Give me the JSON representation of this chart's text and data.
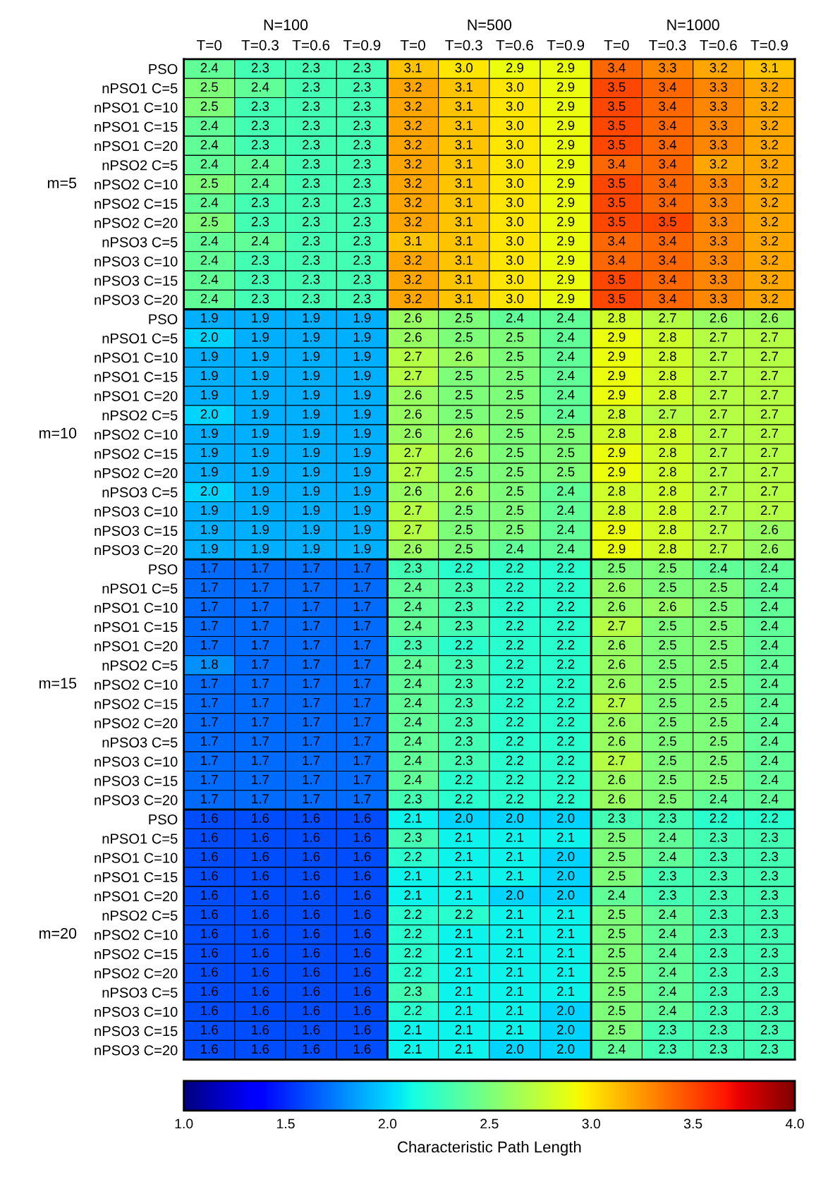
{
  "chart_data": {
    "type": "heatmap",
    "clabel": "Characteristic Path Length",
    "categories": [
      "T=0",
      "T=0.3",
      "T=0.6",
      "T=0.9",
      "T=0",
      "T=0.3",
      "T=0.6",
      "T=0.9",
      "T=0",
      "T=0.3",
      "T=0.6",
      "T=0.9"
    ],
    "y_categories": [
      "PSO",
      "nPSO1 C=5",
      "nPSO1 C=10",
      "nPSO1 C=15",
      "nPSO1 C=20",
      "nPSO2 C=5",
      "nPSO2 C=10",
      "nPSO2 C=15",
      "nPSO2 C=20",
      "nPSO3 C=5",
      "nPSO3 C=10",
      "nPSO3 C=15",
      "nPSO3 C=20",
      "PSO",
      "nPSO1 C=5",
      "nPSO1 C=10",
      "nPSO1 C=15",
      "nPSO1 C=20",
      "nPSO2 C=5",
      "nPSO2 C=10",
      "nPSO2 C=15",
      "nPSO2 C=20",
      "nPSO3 C=5",
      "nPSO3 C=10",
      "nPSO3 C=15",
      "nPSO3 C=20",
      "PSO",
      "nPSO1 C=5",
      "nPSO1 C=10",
      "nPSO1 C=15",
      "nPSO1 C=20",
      "nPSO2 C=5",
      "nPSO2 C=10",
      "nPSO2 C=15",
      "nPSO2 C=20",
      "nPSO3 C=5",
      "nPSO3 C=10",
      "nPSO3 C=15",
      "nPSO3 C=20",
      "PSO",
      "nPSO1 C=5",
      "nPSO1 C=10",
      "nPSO1 C=15",
      "nPSO1 C=20",
      "nPSO2 C=5",
      "nPSO2 C=10",
      "nPSO2 C=15",
      "nPSO2 C=20",
      "nPSO3 C=5",
      "nPSO3 C=10",
      "nPSO3 C=15",
      "nPSO3 C=20"
    ],
    "cells": [
      [
        2.4,
        2.3,
        2.3,
        2.3,
        3.1,
        3.0,
        2.9,
        2.9,
        3.4,
        3.3,
        3.2,
        3.1
      ],
      [
        2.5,
        2.4,
        2.3,
        2.3,
        3.2,
        3.1,
        3.0,
        2.9,
        3.5,
        3.4,
        3.3,
        3.2
      ],
      [
        2.5,
        2.3,
        2.3,
        2.3,
        3.2,
        3.1,
        3.0,
        2.9,
        3.5,
        3.4,
        3.3,
        3.2
      ],
      [
        2.4,
        2.3,
        2.3,
        2.3,
        3.2,
        3.1,
        3.0,
        2.9,
        3.5,
        3.4,
        3.3,
        3.2
      ],
      [
        2.4,
        2.3,
        2.3,
        2.3,
        3.2,
        3.1,
        3.0,
        2.9,
        3.5,
        3.4,
        3.3,
        3.2
      ],
      [
        2.4,
        2.4,
        2.3,
        2.3,
        3.2,
        3.1,
        3.0,
        2.9,
        3.4,
        3.4,
        3.2,
        3.2
      ],
      [
        2.5,
        2.4,
        2.3,
        2.3,
        3.2,
        3.1,
        3.0,
        2.9,
        3.5,
        3.4,
        3.3,
        3.2
      ],
      [
        2.4,
        2.3,
        2.3,
        2.3,
        3.2,
        3.1,
        3.0,
        2.9,
        3.5,
        3.4,
        3.3,
        3.2
      ],
      [
        2.5,
        2.3,
        2.3,
        2.3,
        3.2,
        3.1,
        3.0,
        2.9,
        3.5,
        3.5,
        3.3,
        3.2
      ],
      [
        2.4,
        2.4,
        2.3,
        2.3,
        3.1,
        3.1,
        3.0,
        2.9,
        3.4,
        3.4,
        3.3,
        3.2
      ],
      [
        2.4,
        2.3,
        2.3,
        2.3,
        3.2,
        3.1,
        3.0,
        2.9,
        3.4,
        3.4,
        3.3,
        3.2
      ],
      [
        2.4,
        2.3,
        2.3,
        2.3,
        3.2,
        3.1,
        3.0,
        2.9,
        3.5,
        3.4,
        3.3,
        3.2
      ],
      [
        2.4,
        2.3,
        2.3,
        2.3,
        3.2,
        3.1,
        3.0,
        2.9,
        3.5,
        3.4,
        3.3,
        3.2
      ],
      [
        1.9,
        1.9,
        1.9,
        1.9,
        2.6,
        2.5,
        2.4,
        2.4,
        2.8,
        2.7,
        2.6,
        2.6
      ],
      [
        2.0,
        1.9,
        1.9,
        1.9,
        2.6,
        2.5,
        2.5,
        2.4,
        2.9,
        2.8,
        2.7,
        2.7
      ],
      [
        1.9,
        1.9,
        1.9,
        1.9,
        2.7,
        2.6,
        2.5,
        2.4,
        2.9,
        2.8,
        2.7,
        2.7
      ],
      [
        1.9,
        1.9,
        1.9,
        1.9,
        2.7,
        2.5,
        2.5,
        2.4,
        2.9,
        2.8,
        2.7,
        2.7
      ],
      [
        1.9,
        1.9,
        1.9,
        1.9,
        2.6,
        2.5,
        2.5,
        2.4,
        2.9,
        2.8,
        2.7,
        2.7
      ],
      [
        2.0,
        1.9,
        1.9,
        1.9,
        2.6,
        2.5,
        2.5,
        2.4,
        2.8,
        2.7,
        2.7,
        2.7
      ],
      [
        1.9,
        1.9,
        1.9,
        1.9,
        2.6,
        2.6,
        2.5,
        2.5,
        2.8,
        2.8,
        2.7,
        2.7
      ],
      [
        1.9,
        1.9,
        1.9,
        1.9,
        2.7,
        2.6,
        2.5,
        2.5,
        2.9,
        2.8,
        2.7,
        2.7
      ],
      [
        1.9,
        1.9,
        1.9,
        1.9,
        2.7,
        2.5,
        2.5,
        2.5,
        2.9,
        2.8,
        2.7,
        2.7
      ],
      [
        2.0,
        1.9,
        1.9,
        1.9,
        2.6,
        2.6,
        2.5,
        2.4,
        2.8,
        2.8,
        2.7,
        2.7
      ],
      [
        1.9,
        1.9,
        1.9,
        1.9,
        2.7,
        2.5,
        2.5,
        2.4,
        2.8,
        2.8,
        2.7,
        2.7
      ],
      [
        1.9,
        1.9,
        1.9,
        1.9,
        2.7,
        2.5,
        2.5,
        2.4,
        2.9,
        2.8,
        2.7,
        2.6
      ],
      [
        1.9,
        1.9,
        1.9,
        1.9,
        2.6,
        2.5,
        2.4,
        2.4,
        2.9,
        2.8,
        2.7,
        2.6
      ],
      [
        1.7,
        1.7,
        1.7,
        1.7,
        2.3,
        2.2,
        2.2,
        2.2,
        2.5,
        2.5,
        2.4,
        2.4
      ],
      [
        1.7,
        1.7,
        1.7,
        1.7,
        2.4,
        2.3,
        2.2,
        2.2,
        2.6,
        2.5,
        2.5,
        2.4
      ],
      [
        1.7,
        1.7,
        1.7,
        1.7,
        2.4,
        2.3,
        2.2,
        2.2,
        2.6,
        2.6,
        2.5,
        2.4
      ],
      [
        1.7,
        1.7,
        1.7,
        1.7,
        2.4,
        2.3,
        2.2,
        2.2,
        2.7,
        2.5,
        2.5,
        2.4
      ],
      [
        1.7,
        1.7,
        1.7,
        1.7,
        2.3,
        2.2,
        2.2,
        2.2,
        2.6,
        2.5,
        2.5,
        2.4
      ],
      [
        1.8,
        1.7,
        1.7,
        1.7,
        2.4,
        2.3,
        2.2,
        2.2,
        2.6,
        2.5,
        2.5,
        2.4
      ],
      [
        1.7,
        1.7,
        1.7,
        1.7,
        2.4,
        2.3,
        2.2,
        2.2,
        2.6,
        2.5,
        2.5,
        2.4
      ],
      [
        1.7,
        1.7,
        1.7,
        1.7,
        2.4,
        2.3,
        2.2,
        2.2,
        2.7,
        2.5,
        2.5,
        2.4
      ],
      [
        1.7,
        1.7,
        1.7,
        1.7,
        2.4,
        2.3,
        2.2,
        2.2,
        2.6,
        2.5,
        2.5,
        2.4
      ],
      [
        1.7,
        1.7,
        1.7,
        1.7,
        2.4,
        2.3,
        2.2,
        2.2,
        2.6,
        2.5,
        2.5,
        2.4
      ],
      [
        1.7,
        1.7,
        1.7,
        1.7,
        2.4,
        2.3,
        2.2,
        2.2,
        2.7,
        2.5,
        2.5,
        2.4
      ],
      [
        1.7,
        1.7,
        1.7,
        1.7,
        2.4,
        2.2,
        2.2,
        2.2,
        2.6,
        2.5,
        2.5,
        2.4
      ],
      [
        1.7,
        1.7,
        1.7,
        1.7,
        2.3,
        2.2,
        2.2,
        2.2,
        2.6,
        2.5,
        2.4,
        2.4
      ],
      [
        1.6,
        1.6,
        1.6,
        1.6,
        2.1,
        2.0,
        2.0,
        2.0,
        2.3,
        2.3,
        2.2,
        2.2
      ],
      [
        1.6,
        1.6,
        1.6,
        1.6,
        2.3,
        2.1,
        2.1,
        2.1,
        2.5,
        2.4,
        2.3,
        2.3
      ],
      [
        1.6,
        1.6,
        1.6,
        1.6,
        2.2,
        2.1,
        2.1,
        2.0,
        2.5,
        2.4,
        2.3,
        2.3
      ],
      [
        1.6,
        1.6,
        1.6,
        1.6,
        2.1,
        2.1,
        2.1,
        2.0,
        2.5,
        2.3,
        2.3,
        2.3
      ],
      [
        1.6,
        1.6,
        1.6,
        1.6,
        2.1,
        2.1,
        2.0,
        2.0,
        2.4,
        2.3,
        2.3,
        2.3
      ],
      [
        1.6,
        1.6,
        1.6,
        1.6,
        2.2,
        2.2,
        2.1,
        2.1,
        2.5,
        2.4,
        2.3,
        2.3
      ],
      [
        1.6,
        1.6,
        1.6,
        1.6,
        2.2,
        2.1,
        2.1,
        2.1,
        2.5,
        2.4,
        2.3,
        2.3
      ],
      [
        1.6,
        1.6,
        1.6,
        1.6,
        2.2,
        2.1,
        2.1,
        2.1,
        2.5,
        2.4,
        2.3,
        2.3
      ],
      [
        1.6,
        1.6,
        1.6,
        1.6,
        2.2,
        2.1,
        2.1,
        2.1,
        2.5,
        2.4,
        2.3,
        2.3
      ],
      [
        1.6,
        1.6,
        1.6,
        1.6,
        2.3,
        2.1,
        2.1,
        2.1,
        2.5,
        2.4,
        2.3,
        2.3
      ],
      [
        1.6,
        1.6,
        1.6,
        1.6,
        2.2,
        2.1,
        2.1,
        2.0,
        2.5,
        2.4,
        2.3,
        2.3
      ],
      [
        1.6,
        1.6,
        1.6,
        1.6,
        2.1,
        2.1,
        2.1,
        2.0,
        2.5,
        2.3,
        2.3,
        2.3
      ],
      [
        1.6,
        1.6,
        1.6,
        1.6,
        2.1,
        2.1,
        2.0,
        2.0,
        2.4,
        2.3,
        2.3,
        2.3
      ]
    ],
    "cell_labels": [
      [
        "2.4",
        "2.3",
        "2.3",
        "2.3",
        "3.1",
        "3.0",
        "2.9",
        "2.9",
        "3.4",
        "3.3",
        "3.2",
        "3.1"
      ],
      [
        "2.5",
        "2.4",
        "2.3",
        "2.3",
        "3.2",
        "3.1",
        "3.0",
        "2.9",
        "3.5",
        "3.4",
        "3.3",
        "3.2"
      ],
      [
        "2.5",
        "2.3",
        "2.3",
        "2.3",
        "3.2",
        "3.1",
        "3.0",
        "2.9",
        "3.5",
        "3.4",
        "3.3",
        "3.2"
      ],
      [
        "2.4",
        "2.3",
        "2.3",
        "2.3",
        "3.2",
        "3.1",
        "3.0",
        "2.9",
        "3.5",
        "3.4",
        "3.3",
        "3.2"
      ],
      [
        "2.4",
        "2.3",
        "2.3",
        "2.3",
        "3.2",
        "3.1",
        "3.0",
        "2.9",
        "3.5",
        "3.4",
        "3.3",
        "3.2"
      ],
      [
        "2.4",
        "2.4",
        "2.3",
        "2.3",
        "3.2",
        "3.1",
        "3.0",
        "2.9",
        "3.4",
        "3.4",
        "3.2",
        "3.2"
      ],
      [
        "2.5",
        "2.4",
        "2.3",
        "2.3",
        "3.2",
        "3.1",
        "3.0",
        "2.9",
        "3.5",
        "3.4",
        "3.3",
        "3.2"
      ],
      [
        "2.4",
        "2.3",
        "2.3",
        "2.3",
        "3.2",
        "3.1",
        "3.0",
        "2.9",
        "3.5",
        "3.4",
        "3.3",
        "3.2"
      ],
      [
        "2.5",
        "2.3",
        "2.3",
        "2.3",
        "3.2",
        "3.1",
        "3.0",
        "2.9",
        "3.5",
        "3.5",
        "3.3",
        "3.2"
      ],
      [
        "2.4",
        "2.4",
        "2.3",
        "2.3",
        "3.1",
        "3.1",
        "3.0",
        "2.9",
        "3.4",
        "3.4",
        "3.3",
        "3.2"
      ],
      [
        "2.4",
        "2.3",
        "2.3",
        "2.3",
        "3.2",
        "3.1",
        "3.0",
        "2.9",
        "3.4",
        "3.4",
        "3.3",
        "3.2"
      ],
      [
        "2.4",
        "2.3",
        "2.3",
        "2.3",
        "3.2",
        "3.1",
        "3.0",
        "2.9",
        "3.5",
        "3.4",
        "3.3",
        "3.2"
      ],
      [
        "2.4",
        "2.3",
        "2.3",
        "2.3",
        "3.2",
        "3.1",
        "3.0",
        "2.9",
        "3.5",
        "3.4",
        "3.3",
        "3.2"
      ],
      [
        "1.9",
        "1.9",
        "1.9",
        "1.9",
        "2.6",
        "2.5",
        "2.4",
        "2.4",
        "2.8",
        "2.7",
        "2.6",
        "2.6"
      ],
      [
        "2.0",
        "1.9",
        "1.9",
        "1.9",
        "2.6",
        "2.5",
        "2.5",
        "2.4",
        "2.9",
        "2.8",
        "2.7",
        "2.7"
      ],
      [
        "1.9",
        "1.9",
        "1.9",
        "1.9",
        "2.7",
        "2.6",
        "2.5",
        "2.4",
        "2.9",
        "2.8",
        "2.7",
        "2.7"
      ],
      [
        "1.9",
        "1.9",
        "1.9",
        "1.9",
        "2.7",
        "2.5",
        "2.5",
        "2.4",
        "2.9",
        "2.8",
        "2.7",
        "2.7"
      ],
      [
        "1.9",
        "1.9",
        "1.9",
        "1.9",
        "2.6",
        "2.5",
        "2.5",
        "2.4",
        "2.9",
        "2.8",
        "2.7",
        "2.7"
      ],
      [
        "2.0",
        "1.9",
        "1.9",
        "1.9",
        "2.6",
        "2.5",
        "2.5",
        "2.4",
        "2.8",
        "2.7",
        "2.7",
        "2.7"
      ],
      [
        "1.9",
        "1.9",
        "1.9",
        "1.9",
        "2.6",
        "2.6",
        "2.5",
        "2.5",
        "2.8",
        "2.8",
        "2.7",
        "2.7"
      ],
      [
        "1.9",
        "1.9",
        "1.9",
        "1.9",
        "2.7",
        "2.6",
        "2.5",
        "2.5",
        "2.9",
        "2.8",
        "2.7",
        "2.7"
      ],
      [
        "1.9",
        "1.9",
        "1.9",
        "1.9",
        "2.7",
        "2.5",
        "2.5",
        "2.5",
        "2.9",
        "2.8",
        "2.7",
        "2.7"
      ],
      [
        "2.0",
        "1.9",
        "1.9",
        "1.9",
        "2.6",
        "2.6",
        "2.5",
        "2.4",
        "2.8",
        "2.8",
        "2.7",
        "2.7"
      ],
      [
        "1.9",
        "1.9",
        "1.9",
        "1.9",
        "2.7",
        "2.5",
        "2.5",
        "2.4",
        "2.8",
        "2.8",
        "2.7",
        "2.7"
      ],
      [
        "1.9",
        "1.9",
        "1.9",
        "1.9",
        "2.7",
        "2.5",
        "2.5",
        "2.4",
        "2.9",
        "2.8",
        "2.7",
        "2.6"
      ],
      [
        "1.9",
        "1.9",
        "1.9",
        "1.9",
        "2.6",
        "2.5",
        "2.4",
        "2.4",
        "2.9",
        "2.8",
        "2.7",
        "2.6"
      ],
      [
        "1.7",
        "1.7",
        "1.7",
        "1.7",
        "2.3",
        "2.2",
        "2.2",
        "2.2",
        "2.5",
        "2.5",
        "2.4",
        "2.4"
      ],
      [
        "1.7",
        "1.7",
        "1.7",
        "1.7",
        "2.4",
        "2.3",
        "2.2",
        "2.2",
        "2.6",
        "2.5",
        "2.5",
        "2.4"
      ],
      [
        "1.7",
        "1.7",
        "1.7",
        "1.7",
        "2.4",
        "2.3",
        "2.2",
        "2.2",
        "2.6",
        "2.6",
        "2.5",
        "2.4"
      ],
      [
        "1.7",
        "1.7",
        "1.7",
        "1.7",
        "2.4",
        "2.3",
        "2.2",
        "2.2",
        "2.7",
        "2.5",
        "2.5",
        "2.4"
      ],
      [
        "1.7",
        "1.7",
        "1.7",
        "1.7",
        "2.3",
        "2.2",
        "2.2",
        "2.2",
        "2.6",
        "2.5",
        "2.5",
        "2.4"
      ],
      [
        "1.8",
        "1.7",
        "1.7",
        "1.7",
        "2.4",
        "2.3",
        "2.2",
        "2.2",
        "2.6",
        "2.5",
        "2.5",
        "2.4"
      ],
      [
        "1.7",
        "1.7",
        "1.7",
        "1.7",
        "2.4",
        "2.3",
        "2.2",
        "2.2",
        "2.6",
        "2.5",
        "2.5",
        "2.4"
      ],
      [
        "1.7",
        "1.7",
        "1.7",
        "1.7",
        "2.4",
        "2.3",
        "2.2",
        "2.2",
        "2.7",
        "2.5",
        "2.5",
        "2.4"
      ],
      [
        "1.7",
        "1.7",
        "1.7",
        "1.7",
        "2.4",
        "2.3",
        "2.2",
        "2.2",
        "2.6",
        "2.5",
        "2.5",
        "2.4"
      ],
      [
        "1.7",
        "1.7",
        "1.7",
        "1.7",
        "2.4",
        "2.3",
        "2.2",
        "2.2",
        "2.6",
        "2.5",
        "2.5",
        "2.4"
      ],
      [
        "1.7",
        "1.7",
        "1.7",
        "1.7",
        "2.4",
        "2.3",
        "2.2",
        "2.2",
        "2.7",
        "2.5",
        "2.5",
        "2.4"
      ],
      [
        "1.7",
        "1.7",
        "1.7",
        "1.7",
        "2.4",
        "2.2",
        "2.2",
        "2.2",
        "2.6",
        "2.5",
        "2.5",
        "2.4"
      ],
      [
        "1.7",
        "1.7",
        "1.7",
        "1.7",
        "2.3",
        "2.2",
        "2.2",
        "2.2",
        "2.6",
        "2.5",
        "2.4",
        "2.4"
      ],
      [
        "1.6",
        "1.6",
        "1.6",
        "1.6",
        "2.1",
        "2.0",
        "2.0",
        "2.0",
        "2.3",
        "2.3",
        "2.2",
        "2.2"
      ],
      [
        "1.6",
        "1.6",
        "1.6",
        "1.6",
        "2.3",
        "2.1",
        "2.1",
        "2.1",
        "2.5",
        "2.4",
        "2.3",
        "2.3"
      ],
      [
        "1.6",
        "1.6",
        "1.6",
        "1.6",
        "2.2",
        "2.1",
        "2.1",
        "2.0",
        "2.5",
        "2.4",
        "2.3",
        "2.3"
      ],
      [
        "1.6",
        "1.6",
        "1.6",
        "1.6",
        "2.1",
        "2.1",
        "2.1",
        "2.0",
        "2.5",
        "2.3",
        "2.3",
        "2.3"
      ],
      [
        "1.6",
        "1.6",
        "1.6",
        "1.6",
        "2.1",
        "2.1",
        "2.0",
        "2.0",
        "2.4",
        "2.3",
        "2.3",
        "2.3"
      ],
      [
        "1.6",
        "1.6",
        "1.6",
        "1.6",
        "2.2",
        "2.2",
        "2.1",
        "2.1",
        "2.5",
        "2.4",
        "2.3",
        "2.3"
      ],
      [
        "1.6",
        "1.6",
        "1.6",
        "1.6",
        "2.2",
        "2.1",
        "2.1",
        "2.1",
        "2.5",
        "2.4",
        "2.3",
        "2.3"
      ],
      [
        "1.6",
        "1.6",
        "1.6",
        "1.6",
        "2.2",
        "2.1",
        "2.1",
        "2.1",
        "2.5",
        "2.4",
        "2.3",
        "2.3"
      ],
      [
        "1.6",
        "1.6",
        "1.6",
        "1.6",
        "2.2",
        "2.1",
        "2.1",
        "2.1",
        "2.5",
        "2.4",
        "2.3",
        "2.3"
      ],
      [
        "1.6",
        "1.6",
        "1.6",
        "1.6",
        "2.3",
        "2.1",
        "2.1",
        "2.1",
        "2.5",
        "2.4",
        "2.3",
        "2.3"
      ],
      [
        "1.6",
        "1.6",
        "1.6",
        "1.6",
        "2.2",
        "2.1",
        "2.1",
        "2.0",
        "2.5",
        "2.4",
        "2.3",
        "2.3"
      ],
      [
        "1.6",
        "1.6",
        "1.6",
        "1.6",
        "2.1",
        "2.1",
        "2.1",
        "2.0",
        "2.5",
        "2.3",
        "2.3",
        "2.3"
      ],
      [
        "1.6",
        "1.6",
        "1.6",
        "1.6",
        "2.1",
        "2.1",
        "2.0",
        "2.0",
        "2.4",
        "2.3",
        "2.3",
        "2.3"
      ]
    ],
    "clim": [
      1.0,
      4.0
    ],
    "cticks": [
      {
        "value": 1.0,
        "label": "1.0"
      },
      {
        "value": 1.5,
        "label": "1.5"
      },
      {
        "value": 2.0,
        "label": "2.0"
      },
      {
        "value": 2.5,
        "label": "2.5"
      },
      {
        "value": 3.0,
        "label": "3.0"
      },
      {
        "value": 3.5,
        "label": "3.5"
      },
      {
        "value": 4.0,
        "label": "4.0"
      }
    ],
    "annotations": [
      "N=100",
      "N=500",
      "N=1000",
      "m=5",
      "m=10",
      "m=15",
      "m=20"
    ],
    "data_labels": true
  }
}
